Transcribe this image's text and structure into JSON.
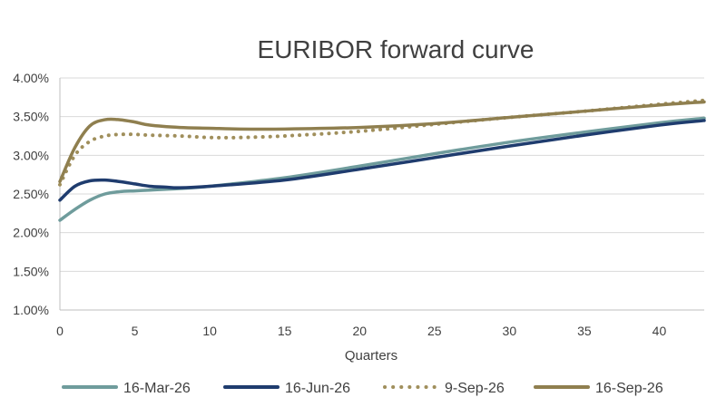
{
  "chart_data": {
    "type": "line",
    "title": "EURIBOR forward curve",
    "xlabel": "Quarters",
    "ylabel": "",
    "xlim": [
      0,
      43
    ],
    "ylim": [
      1.0,
      4.0
    ],
    "x_ticks": [
      0,
      5,
      10,
      15,
      20,
      25,
      30,
      35,
      40
    ],
    "x_tick_labels": [
      "0",
      "5",
      "10",
      "15",
      "20",
      "25",
      "30",
      "35",
      "40"
    ],
    "y_ticks": [
      1.0,
      1.5,
      2.0,
      2.5,
      3.0,
      3.5,
      4.0
    ],
    "y_tick_labels": [
      "1.00%",
      "1.50%",
      "2.00%",
      "2.50%",
      "3.00%",
      "3.50%",
      "4.00%"
    ],
    "grid": "horizontal",
    "legend_position": "bottom",
    "series": [
      {
        "name": "16-Mar-26",
        "color": "#6f9c9c",
        "style": "solid",
        "x": [
          0,
          1,
          2,
          3,
          4,
          5,
          6,
          7,
          8,
          10,
          15,
          20,
          25,
          30,
          35,
          40,
          43
        ],
        "values": [
          2.16,
          2.3,
          2.42,
          2.5,
          2.53,
          2.54,
          2.55,
          2.56,
          2.57,
          2.6,
          2.71,
          2.86,
          3.02,
          3.17,
          3.3,
          3.42,
          3.48
        ]
      },
      {
        "name": "16-Jun-26",
        "color": "#1f3c6e",
        "style": "solid",
        "x": [
          0,
          1,
          2,
          3,
          4,
          5,
          6,
          7,
          8,
          10,
          15,
          20,
          25,
          30,
          35,
          40,
          43
        ],
        "values": [
          2.42,
          2.6,
          2.67,
          2.68,
          2.66,
          2.63,
          2.6,
          2.59,
          2.58,
          2.6,
          2.68,
          2.82,
          2.97,
          3.12,
          3.26,
          3.39,
          3.45
        ]
      },
      {
        "name": "9-Sep-26",
        "color": "#a08f5c",
        "style": "dotted",
        "x": [
          0,
          1,
          2,
          3,
          4,
          5,
          6,
          8,
          10,
          12,
          15,
          20,
          25,
          30,
          35,
          40,
          43
        ],
        "values": [
          2.62,
          3.0,
          3.18,
          3.25,
          3.27,
          3.27,
          3.26,
          3.25,
          3.23,
          3.23,
          3.25,
          3.31,
          3.4,
          3.49,
          3.57,
          3.66,
          3.71
        ]
      },
      {
        "name": "16-Sep-26",
        "color": "#8f7f4f",
        "style": "solid",
        "x": [
          0,
          1,
          2,
          3,
          4,
          5,
          6,
          8,
          10,
          12,
          15,
          20,
          25,
          30,
          35,
          40,
          43
        ],
        "values": [
          2.66,
          3.1,
          3.38,
          3.46,
          3.46,
          3.43,
          3.39,
          3.36,
          3.35,
          3.34,
          3.34,
          3.36,
          3.41,
          3.49,
          3.57,
          3.65,
          3.69
        ]
      }
    ]
  }
}
